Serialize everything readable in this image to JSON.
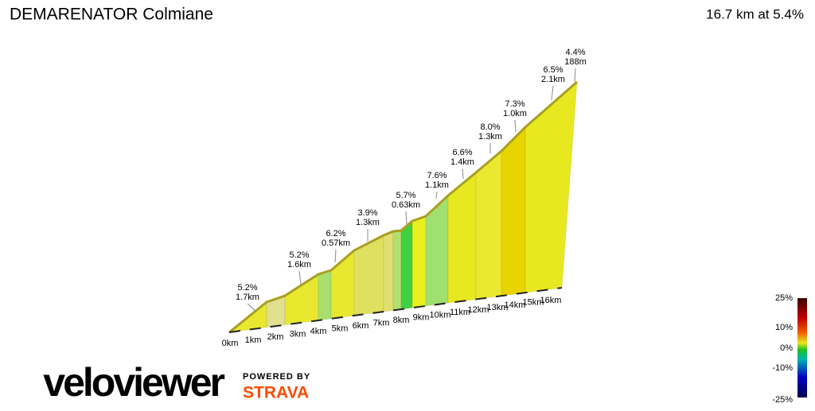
{
  "header": {
    "title": "DEMARENATOR Colmiane",
    "summary": "16.7 km at 5.4%"
  },
  "segments": [
    {
      "grade": "5.2%",
      "length": "1.7km"
    },
    {
      "grade": "5.2%",
      "length": "1.6km"
    },
    {
      "grade": "6.2%",
      "length": "0.57km"
    },
    {
      "grade": "3.9%",
      "length": "1.3km"
    },
    {
      "grade": "5.7%",
      "length": "0.63km"
    },
    {
      "grade": "7.6%",
      "length": "1.1km"
    },
    {
      "grade": "6.6%",
      "length": "1.4km"
    },
    {
      "grade": "8.0%",
      "length": "1.3km"
    },
    {
      "grade": "7.3%",
      "length": "1.0km"
    },
    {
      "grade": "6.5%",
      "length": "2.1km"
    },
    {
      "grade": "4.4%",
      "length": "188m"
    }
  ],
  "distance_labels": [
    "0km",
    "1km",
    "2km",
    "3km",
    "4km",
    "5km",
    "6km",
    "7km",
    "8km",
    "9km",
    "10km",
    "11km",
    "12km",
    "13km",
    "14km",
    "15km",
    "16km"
  ],
  "legend": [
    "25%",
    "10%",
    "0%",
    "-10%",
    "-25%"
  ],
  "branding": {
    "logo": "veloviewer",
    "powered_by": "POWERED BY",
    "partner": "STRAVA"
  }
}
